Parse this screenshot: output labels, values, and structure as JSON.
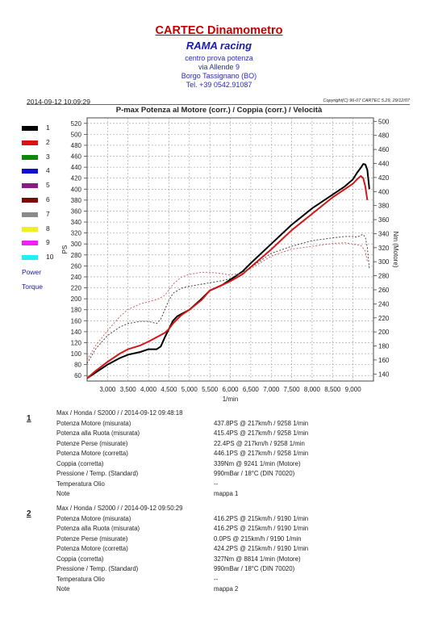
{
  "header": {
    "title": "CARTEC Dinamometro",
    "company": "RAMA racing",
    "lines": [
      "centro prova potenza",
      "via Allende 9",
      "Borgo Tassignano (BO)",
      "Tel. +39 0542.91087"
    ]
  },
  "timestamp": "2014-09-12 10:09:29",
  "copyright": "Copyright(C) 96-07 CARTEC 5.29, 29/12/07",
  "legend": {
    "items": [
      {
        "label": "1",
        "color": "#000000"
      },
      {
        "label": "2",
        "color": "#e01010"
      },
      {
        "label": "3",
        "color": "#0a8a0a"
      },
      {
        "label": "4",
        "color": "#1010d0"
      },
      {
        "label": "5",
        "color": "#8a1a8a"
      },
      {
        "label": "6",
        "color": "#7a0a0a"
      },
      {
        "label": "7",
        "color": "#8a8a8a"
      },
      {
        "label": "8",
        "color": "#f0f020"
      },
      {
        "label": "9",
        "color": "#f020f0"
      },
      {
        "label": "10",
        "color": "#20f0f0"
      }
    ],
    "power": "Power",
    "torque": "Torque"
  },
  "chart_data": {
    "type": "line",
    "title": "P-max Potenza al Motore (corr.) / Coppia (corr.) / Velocità",
    "xlabel": "1/min",
    "ylabel_left": "PS",
    "ylabel_right": "Nm (Motore)",
    "xlim": [
      2500,
      9500
    ],
    "ylim_left": [
      50,
      530
    ],
    "ylim_right": [
      130,
      505
    ],
    "x_ticks": [
      "3,000",
      "3,500",
      "4,000",
      "4,500",
      "5,000",
      "5,500",
      "6,000",
      "6,500",
      "7,000",
      "7,500",
      "8,000",
      "8,500",
      "9,000"
    ],
    "y_ticks_left": [
      60,
      80,
      100,
      120,
      140,
      160,
      180,
      200,
      220,
      240,
      260,
      280,
      300,
      320,
      340,
      360,
      380,
      400,
      420,
      440,
      460,
      480,
      500,
      520
    ],
    "y_ticks_right": [
      140,
      160,
      180,
      200,
      220,
      240,
      260,
      280,
      300,
      320,
      340,
      360,
      380,
      400,
      420,
      440,
      460,
      480,
      500
    ],
    "grid": true,
    "series": [
      {
        "name": "1",
        "kind": "power",
        "color": "#000000",
        "x": [
          2500,
          2700,
          3000,
          3300,
          3500,
          3800,
          4000,
          4200,
          4300,
          4400,
          4500,
          4600,
          4700,
          4800,
          5000,
          5300,
          5500,
          5800,
          6000,
          6300,
          6500,
          7000,
          7500,
          8000,
          8500,
          8800,
          9000,
          9100,
          9200,
          9250,
          9300,
          9350,
          9400
        ],
        "y": [
          55,
          65,
          80,
          92,
          98,
          103,
          108,
          108,
          113,
          130,
          145,
          160,
          168,
          172,
          180,
          200,
          215,
          225,
          235,
          250,
          265,
          300,
          335,
          365,
          390,
          405,
          418,
          430,
          440,
          446,
          445,
          435,
          400
        ]
      },
      {
        "name": "2",
        "kind": "power",
        "color": "#d01818",
        "x": [
          2500,
          2700,
          3000,
          3300,
          3500,
          3800,
          4000,
          4200,
          4400,
          4500,
          4600,
          4800,
          5000,
          5300,
          5500,
          5800,
          6000,
          6300,
          6500,
          7000,
          7500,
          8000,
          8500,
          8800,
          9000,
          9100,
          9190,
          9250,
          9300,
          9350
        ],
        "y": [
          55,
          68,
          85,
          100,
          108,
          115,
          122,
          130,
          138,
          145,
          155,
          170,
          180,
          198,
          215,
          225,
          232,
          245,
          258,
          290,
          325,
          355,
          385,
          400,
          410,
          418,
          424,
          420,
          405,
          380
        ]
      },
      {
        "name": "1",
        "kind": "torque",
        "color": "#333333",
        "x": [
          2500,
          2700,
          3000,
          3300,
          3500,
          3800,
          4000,
          4200,
          4300,
          4400,
          4500,
          4600,
          4800,
          5000,
          5300,
          5500,
          5800,
          6000,
          6300,
          6500,
          7000,
          7500,
          8000,
          8500,
          8800,
          9000,
          9100,
          9200,
          9241,
          9300,
          9350,
          9400
        ],
        "y": [
          155,
          175,
          195,
          207,
          212,
          215,
          215,
          212,
          218,
          232,
          245,
          255,
          262,
          265,
          268,
          270,
          273,
          276,
          285,
          292,
          312,
          322,
          330,
          334,
          336,
          336,
          335,
          338,
          339,
          335,
          320,
          290
        ]
      },
      {
        "name": "2",
        "kind": "torque",
        "color": "#d05050",
        "x": [
          2500,
          2700,
          3000,
          3300,
          3500,
          3800,
          4000,
          4200,
          4400,
          4500,
          4600,
          4800,
          5000,
          5300,
          5500,
          5800,
          6000,
          6300,
          6500,
          7000,
          7500,
          8000,
          8500,
          8814,
          9000,
          9100,
          9200,
          9300,
          9350
        ],
        "y": [
          160,
          180,
          202,
          222,
          232,
          240,
          243,
          246,
          252,
          260,
          268,
          278,
          282,
          285,
          285,
          283,
          281,
          284,
          290,
          308,
          318,
          322,
          326,
          327,
          325,
          324,
          323,
          315,
          300
        ]
      }
    ]
  },
  "runs": [
    {
      "num": "1",
      "header": "Max / Honda / S2000 /  / 2014-09-12 09:48:18",
      "rows": [
        {
          "label": "Potenza Motore (misurata)",
          "value": "437.8PS @ 217km/h / 9258 1/min"
        },
        {
          "label": "Potenza alla Ruota (misurata)",
          "value": "415.4PS @ 217km/h / 9258 1/min"
        },
        {
          "label": "Potenze Perse (misurate)",
          "value": "22.4PS @ 217km/h / 9258 1/min"
        },
        {
          "label": "Potenza Motore (corretta)",
          "value": "446.1PS @ 217km/h / 9258 1/min"
        },
        {
          "label": "Coppia (corretta)",
          "value": "339Nm @ 9241 1/min (Motore)"
        },
        {
          "label": "Pressione / Temp. (Standard)",
          "value": "990mBar / 18°C    (DIN 70020)"
        },
        {
          "label": "Temperatura Olio",
          "value": "--"
        },
        {
          "label": "Note",
          "value": "mappa 1"
        }
      ]
    },
    {
      "num": "2",
      "header": "Max / Honda / S2000 /  / 2014-09-12 09:50:29",
      "rows": [
        {
          "label": "Potenza Motore (misurata)",
          "value": "416.2PS @ 215km/h / 9190 1/min"
        },
        {
          "label": "Potenza alla Ruota (misurata)",
          "value": "416.2PS @ 215km/h / 9190 1/min"
        },
        {
          "label": "Potenze Perse (misurate)",
          "value": "0.0PS @ 215km/h / 9190 1/min"
        },
        {
          "label": "Potenza Motore (corretta)",
          "value": "424.2PS @ 215km/h / 9190 1/min"
        },
        {
          "label": "Coppia (corretta)",
          "value": "327Nm @ 8814 1/min (Motore)"
        },
        {
          "label": "Pressione / Temp. (Standard)",
          "value": "990mBar / 18°C    (DIN 70020)"
        },
        {
          "label": "Temperatura Olio",
          "value": "--"
        },
        {
          "label": "Note",
          "value": "mappa 2"
        }
      ]
    }
  ]
}
